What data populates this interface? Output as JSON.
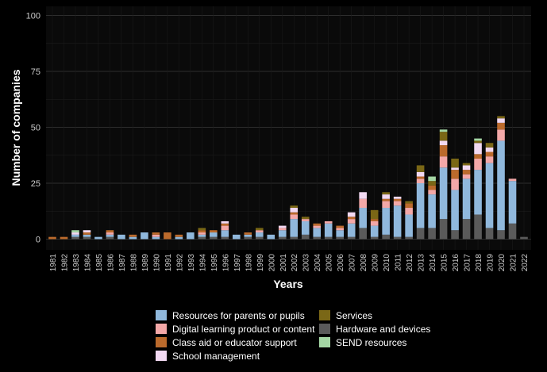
{
  "chart_data": {
    "type": "bar",
    "stacked": true,
    "xlabel": "Years",
    "ylabel": "Number of companies",
    "ylim": [
      0,
      100
    ],
    "yticks": [
      0,
      25,
      50,
      75,
      100
    ],
    "grid": true,
    "legend_position": "bottom",
    "categories": [
      "1981",
      "1982",
      "1983",
      "1984",
      "1985",
      "1986",
      "1987",
      "1988",
      "1989",
      "1990",
      "1991",
      "1992",
      "1993",
      "1994",
      "1995",
      "1996",
      "1997",
      "1998",
      "1999",
      "2000",
      "2001",
      "2002",
      "2003",
      "2004",
      "2005",
      "2006",
      "2007",
      "2008",
      "2009",
      "2010",
      "2011",
      "2012",
      "2013",
      "2014",
      "2015",
      "2016",
      "2017",
      "2018",
      "2019",
      "2020",
      "2021",
      "2022"
    ],
    "series": [
      {
        "name": "Hardware and devices",
        "color": "#5a5a5a",
        "values": [
          0,
          0,
          1,
          1,
          0,
          1,
          0,
          0,
          0,
          0,
          0,
          0,
          0,
          1,
          1,
          1,
          0,
          1,
          1,
          0,
          1,
          1,
          2,
          1,
          1,
          1,
          1,
          5,
          1,
          2,
          1,
          1,
          5,
          5,
          9,
          4,
          9,
          11,
          5,
          4,
          7,
          1
        ]
      },
      {
        "name": "Resources for parents or pupils",
        "color": "#90b8dc",
        "values": [
          0,
          0,
          1,
          1,
          1,
          1,
          2,
          1,
          3,
          1,
          0,
          1,
          3,
          1,
          2,
          3,
          2,
          1,
          2,
          2,
          3,
          8,
          6,
          4,
          6,
          3,
          6,
          9,
          5,
          12,
          14,
          10,
          20,
          15,
          23,
          18,
          18,
          20,
          29,
          40,
          19,
          0
        ]
      },
      {
        "name": "Digital learning product or content",
        "color": "#f3a8a8",
        "values": [
          0,
          0,
          0,
          0,
          0,
          1,
          0,
          0,
          0,
          1,
          0,
          0,
          0,
          1,
          0,
          2,
          0,
          0,
          1,
          0,
          1,
          2,
          1,
          1,
          1,
          1,
          2,
          4,
          2,
          3,
          2,
          3,
          2,
          2,
          5,
          5,
          2,
          5,
          3,
          5,
          1,
          0
        ]
      },
      {
        "name": "Class aid or educator support",
        "color": "#bb6a2c",
        "values": [
          1,
          1,
          0,
          1,
          0,
          1,
          0,
          1,
          0,
          1,
          3,
          1,
          0,
          1,
          1,
          1,
          0,
          1,
          0,
          0,
          0,
          1,
          0,
          1,
          0,
          1,
          1,
          0,
          1,
          1,
          1,
          2,
          1,
          2,
          5,
          4,
          2,
          2,
          2,
          3,
          0,
          0
        ]
      },
      {
        "name": "School management",
        "color": "#f2d9f2",
        "values": [
          0,
          0,
          1,
          1,
          0,
          0,
          0,
          0,
          0,
          0,
          0,
          0,
          0,
          0,
          0,
          1,
          0,
          0,
          0,
          0,
          1,
          2,
          0,
          0,
          0,
          0,
          2,
          3,
          0,
          2,
          1,
          0,
          2,
          0,
          2,
          1,
          2,
          5,
          2,
          2,
          0,
          0
        ]
      },
      {
        "name": "Services",
        "color": "#7a6716",
        "values": [
          0,
          0,
          0,
          0,
          0,
          0,
          0,
          0,
          0,
          0,
          0,
          0,
          0,
          1,
          0,
          0,
          0,
          0,
          1,
          0,
          0,
          1,
          1,
          0,
          0,
          0,
          0,
          0,
          4,
          1,
          0,
          1,
          3,
          2,
          4,
          4,
          1,
          1,
          2,
          1,
          0,
          0
        ]
      },
      {
        "name": "SEND resources",
        "color": "#a5d7a5",
        "values": [
          0,
          0,
          1,
          0,
          0,
          0,
          0,
          0,
          0,
          0,
          0,
          0,
          0,
          0,
          0,
          0,
          0,
          0,
          0,
          0,
          0,
          0,
          0,
          0,
          0,
          0,
          0,
          0,
          0,
          0,
          0,
          0,
          0,
          2,
          1,
          0,
          0,
          1,
          0,
          0,
          0,
          0
        ]
      }
    ]
  },
  "legend": {
    "items": [
      {
        "label": "Resources for parents or pupils",
        "color": "#90b8dc"
      },
      {
        "label": "Digital learning product or content",
        "color": "#f3a8a8"
      },
      {
        "label": "Class aid or educator support",
        "color": "#bb6a2c"
      },
      {
        "label": "School management",
        "color": "#f2d9f2"
      },
      {
        "label": "Services",
        "color": "#7a6716"
      },
      {
        "label": "Hardware and devices",
        "color": "#5a5a5a"
      },
      {
        "label": "SEND resources",
        "color": "#a5d7a5"
      }
    ]
  }
}
